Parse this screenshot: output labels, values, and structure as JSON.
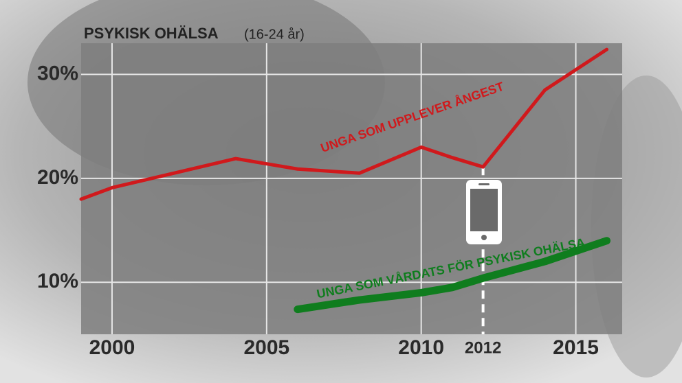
{
  "chart_data": {
    "type": "line",
    "title": "PSYKISK OHÄLSA",
    "subtitle": "(16-24 år)",
    "x": [
      1999,
      2000,
      2004,
      2006,
      2008,
      2010,
      2011,
      2012,
      2014,
      2016
    ],
    "series": [
      {
        "name": "UNGA SOM UPPLEVER ÅNGEST",
        "color": "#d0191c",
        "values": [
          18.0,
          19.1,
          21.9,
          20.9,
          20.5,
          23.0,
          22.0,
          21.1,
          28.5,
          32.4
        ]
      },
      {
        "name": "UNGA SOM VÅRDATS FÖR PSYKISK OHÄLSA",
        "color": "#0f7d1e",
        "values": [
          null,
          null,
          null,
          7.4,
          8.3,
          9.0,
          9.5,
          10.4,
          12.0,
          14.0
        ]
      }
    ],
    "xlim": [
      1999,
      2016.5
    ],
    "xticks": [
      2000,
      2005,
      2010,
      2012,
      2015
    ],
    "ylim": [
      5,
      33
    ],
    "yticks": [
      {
        "value": 10,
        "label": "10%"
      },
      {
        "value": 20,
        "label": "20%"
      },
      {
        "value": 30,
        "label": "30%"
      }
    ],
    "grid": true,
    "marker_year": 2012
  }
}
